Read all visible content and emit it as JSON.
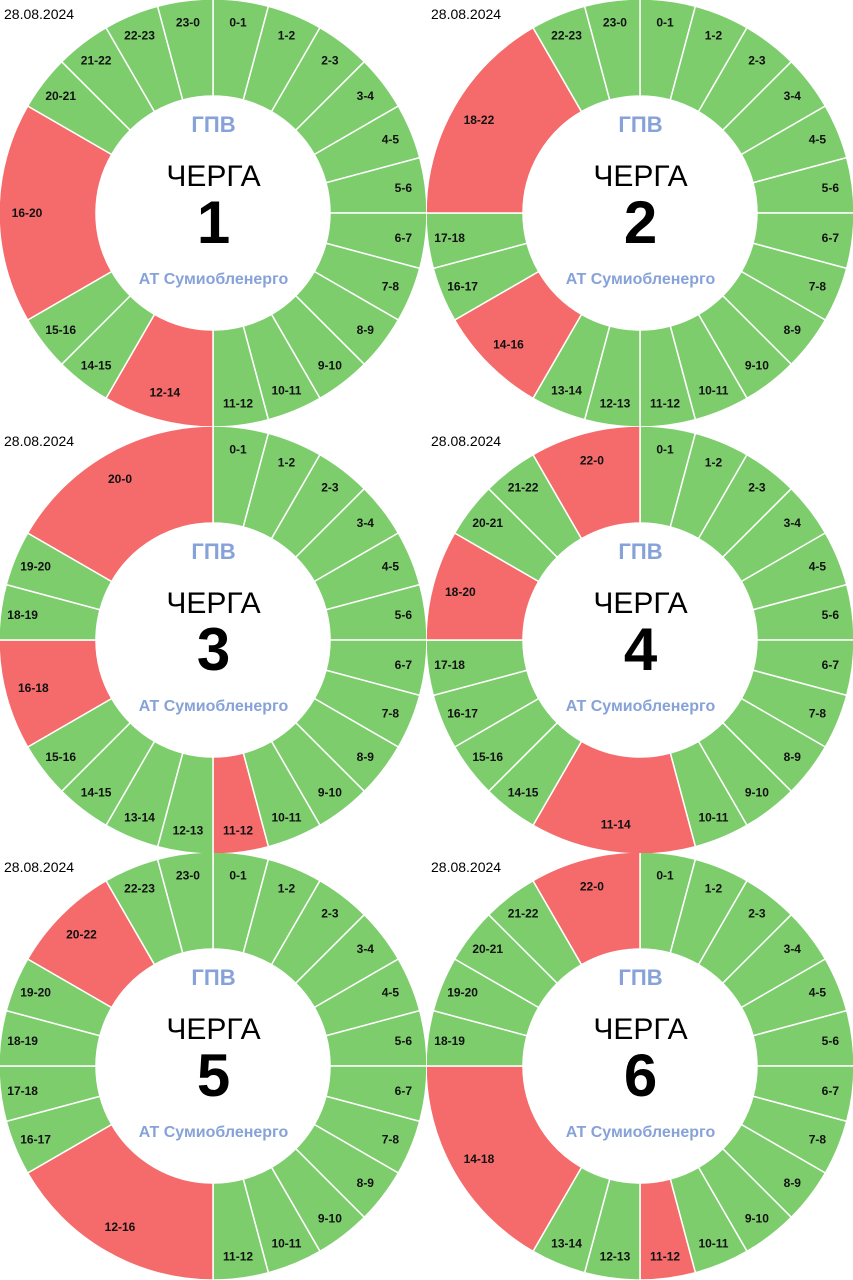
{
  "chart_data": {
    "type": "pie",
    "style": "donut",
    "colors": {
      "on": "#7dcd6d",
      "off": "#f56a6a",
      "accent": "#86a2d8"
    },
    "charts": [
      {
        "date": "28.08.2024",
        "header": "ГПВ",
        "title": "ЧЕРГА",
        "queue": "1",
        "org": "АТ Сумиобленерго",
        "segments": [
          [
            "0-1",
            0,
            1,
            false
          ],
          [
            "1-2",
            1,
            2,
            false
          ],
          [
            "2-3",
            2,
            3,
            false
          ],
          [
            "3-4",
            3,
            4,
            false
          ],
          [
            "4-5",
            4,
            5,
            false
          ],
          [
            "5-6",
            5,
            6,
            false
          ],
          [
            "6-7",
            6,
            7,
            false
          ],
          [
            "7-8",
            7,
            8,
            false
          ],
          [
            "8-9",
            8,
            9,
            false
          ],
          [
            "9-10",
            9,
            10,
            false
          ],
          [
            "10-11",
            10,
            11,
            false
          ],
          [
            "11-12",
            11,
            12,
            false
          ],
          [
            "12-14",
            12,
            14,
            true
          ],
          [
            "14-15",
            14,
            15,
            false
          ],
          [
            "15-16",
            15,
            16,
            false
          ],
          [
            "16-20",
            16,
            20,
            true
          ],
          [
            "20-21",
            20,
            21,
            false
          ],
          [
            "21-22",
            21,
            22,
            false
          ],
          [
            "22-23",
            22,
            23,
            false
          ],
          [
            "23-0",
            23,
            24,
            false
          ]
        ]
      },
      {
        "date": "28.08.2024",
        "header": "ГПВ",
        "title": "ЧЕРГА",
        "queue": "2",
        "org": "АТ Сумиобленерго",
        "segments": [
          [
            "0-1",
            0,
            1,
            false
          ],
          [
            "1-2",
            1,
            2,
            false
          ],
          [
            "2-3",
            2,
            3,
            false
          ],
          [
            "3-4",
            3,
            4,
            false
          ],
          [
            "4-5",
            4,
            5,
            false
          ],
          [
            "5-6",
            5,
            6,
            false
          ],
          [
            "6-7",
            6,
            7,
            false
          ],
          [
            "7-8",
            7,
            8,
            false
          ],
          [
            "8-9",
            8,
            9,
            false
          ],
          [
            "9-10",
            9,
            10,
            false
          ],
          [
            "10-11",
            10,
            11,
            false
          ],
          [
            "11-12",
            11,
            12,
            false
          ],
          [
            "12-13",
            12,
            13,
            false
          ],
          [
            "13-14",
            13,
            14,
            false
          ],
          [
            "14-16",
            14,
            16,
            true
          ],
          [
            "16-17",
            16,
            17,
            false
          ],
          [
            "17-18",
            17,
            18,
            false
          ],
          [
            "18-22",
            18,
            22,
            true
          ],
          [
            "22-23",
            22,
            23,
            false
          ],
          [
            "23-0",
            23,
            24,
            false
          ]
        ]
      },
      {
        "date": "28.08.2024",
        "header": "ГПВ",
        "title": "ЧЕРГА",
        "queue": "3",
        "org": "АТ Сумиобленерго",
        "segments": [
          [
            "0-1",
            0,
            1,
            false
          ],
          [
            "1-2",
            1,
            2,
            false
          ],
          [
            "2-3",
            2,
            3,
            false
          ],
          [
            "3-4",
            3,
            4,
            false
          ],
          [
            "4-5",
            4,
            5,
            false
          ],
          [
            "5-6",
            5,
            6,
            false
          ],
          [
            "6-7",
            6,
            7,
            false
          ],
          [
            "7-8",
            7,
            8,
            false
          ],
          [
            "8-9",
            8,
            9,
            false
          ],
          [
            "9-10",
            9,
            10,
            false
          ],
          [
            "10-11",
            10,
            11,
            false
          ],
          [
            "11-12",
            11,
            12,
            true
          ],
          [
            "12-13",
            12,
            13,
            false
          ],
          [
            "13-14",
            13,
            14,
            false
          ],
          [
            "14-15",
            14,
            15,
            false
          ],
          [
            "15-16",
            15,
            16,
            false
          ],
          [
            "16-18",
            16,
            18,
            true
          ],
          [
            "18-19",
            18,
            19,
            false
          ],
          [
            "19-20",
            19,
            20,
            false
          ],
          [
            "20-0",
            20,
            24,
            true
          ]
        ]
      },
      {
        "date": "28.08.2024",
        "header": "ГПВ",
        "title": "ЧЕРГА",
        "queue": "4",
        "org": "АТ Сумиобленерго",
        "segments": [
          [
            "0-1",
            0,
            1,
            false
          ],
          [
            "1-2",
            1,
            2,
            false
          ],
          [
            "2-3",
            2,
            3,
            false
          ],
          [
            "3-4",
            3,
            4,
            false
          ],
          [
            "4-5",
            4,
            5,
            false
          ],
          [
            "5-6",
            5,
            6,
            false
          ],
          [
            "6-7",
            6,
            7,
            false
          ],
          [
            "7-8",
            7,
            8,
            false
          ],
          [
            "8-9",
            8,
            9,
            false
          ],
          [
            "9-10",
            9,
            10,
            false
          ],
          [
            "10-11",
            10,
            11,
            false
          ],
          [
            "11-14",
            11,
            14,
            true
          ],
          [
            "14-15",
            14,
            15,
            false
          ],
          [
            "15-16",
            15,
            16,
            false
          ],
          [
            "16-17",
            16,
            17,
            false
          ],
          [
            "17-18",
            17,
            18,
            false
          ],
          [
            "18-20",
            18,
            20,
            true
          ],
          [
            "20-21",
            20,
            21,
            false
          ],
          [
            "21-22",
            21,
            22,
            false
          ],
          [
            "22-0",
            22,
            24,
            true
          ]
        ]
      },
      {
        "date": "28.08.2024",
        "header": "ГПВ",
        "title": "ЧЕРГА",
        "queue": "5",
        "org": "АТ Сумиобленерго",
        "segments": [
          [
            "0-1",
            0,
            1,
            false
          ],
          [
            "1-2",
            1,
            2,
            false
          ],
          [
            "2-3",
            2,
            3,
            false
          ],
          [
            "3-4",
            3,
            4,
            false
          ],
          [
            "4-5",
            4,
            5,
            false
          ],
          [
            "5-6",
            5,
            6,
            false
          ],
          [
            "6-7",
            6,
            7,
            false
          ],
          [
            "7-8",
            7,
            8,
            false
          ],
          [
            "8-9",
            8,
            9,
            false
          ],
          [
            "9-10",
            9,
            10,
            false
          ],
          [
            "10-11",
            10,
            11,
            false
          ],
          [
            "11-12",
            11,
            12,
            false
          ],
          [
            "12-16",
            12,
            16,
            true
          ],
          [
            "16-17",
            16,
            17,
            false
          ],
          [
            "17-18",
            17,
            18,
            false
          ],
          [
            "18-19",
            18,
            19,
            false
          ],
          [
            "19-20",
            19,
            20,
            false
          ],
          [
            "20-22",
            20,
            22,
            true
          ],
          [
            "22-23",
            22,
            23,
            false
          ],
          [
            "23-0",
            23,
            24,
            false
          ]
        ]
      },
      {
        "date": "28.08.2024",
        "header": "ГПВ",
        "title": "ЧЕРГА",
        "queue": "6",
        "org": "АТ Сумиобленерго",
        "segments": [
          [
            "0-1",
            0,
            1,
            false
          ],
          [
            "1-2",
            1,
            2,
            false
          ],
          [
            "2-3",
            2,
            3,
            false
          ],
          [
            "3-4",
            3,
            4,
            false
          ],
          [
            "4-5",
            4,
            5,
            false
          ],
          [
            "5-6",
            5,
            6,
            false
          ],
          [
            "6-7",
            6,
            7,
            false
          ],
          [
            "7-8",
            7,
            8,
            false
          ],
          [
            "8-9",
            8,
            9,
            false
          ],
          [
            "9-10",
            9,
            10,
            false
          ],
          [
            "10-11",
            10,
            11,
            false
          ],
          [
            "11-12",
            11,
            12,
            true
          ],
          [
            "12-13",
            12,
            13,
            false
          ],
          [
            "13-14",
            13,
            14,
            false
          ],
          [
            "14-18",
            14,
            18,
            true
          ],
          [
            "18-19",
            18,
            19,
            false
          ],
          [
            "19-20",
            19,
            20,
            false
          ],
          [
            "20-21",
            20,
            21,
            false
          ],
          [
            "21-22",
            21,
            22,
            false
          ],
          [
            "22-0",
            22,
            24,
            true
          ]
        ]
      }
    ]
  }
}
